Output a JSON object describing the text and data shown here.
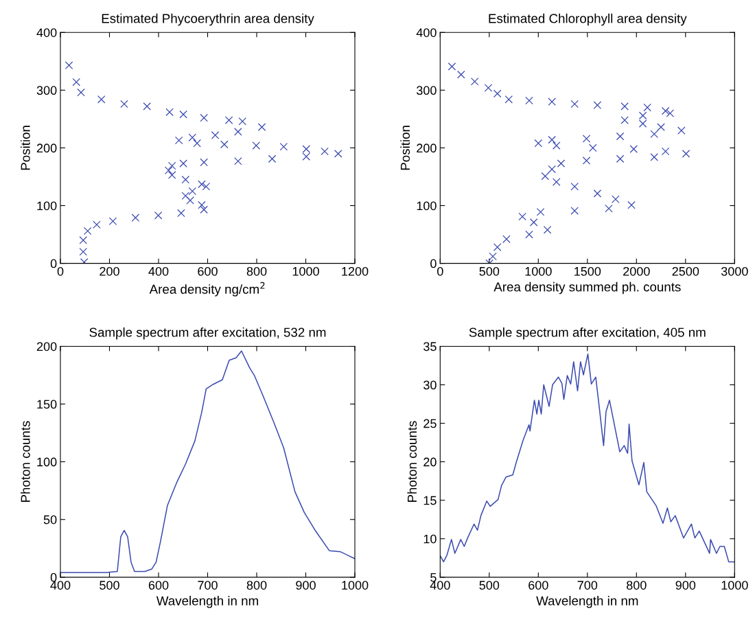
{
  "chart_data": [
    {
      "type": "scatter",
      "title": "Estimated Phycoerythrin area density",
      "xlabel": "Area density ng/cm$^{2}$",
      "ylabel": "Position",
      "color": "#3a4ab0",
      "marker": "cross",
      "x": [
        35,
        65,
        84,
        167,
        260,
        353,
        445,
        501,
        585,
        687,
        742,
        821,
        724,
        631,
        538,
        483,
        557,
        668,
        798,
        910,
        1002,
        1077,
        1132,
        1002,
        863,
        724,
        585,
        501,
        455,
        441,
        455,
        510,
        576,
        594,
        538,
        510,
        529,
        576,
        585,
        492,
        399,
        306,
        214,
        148,
        111,
        93,
        93,
        97
      ],
      "values": [
        343,
        314,
        296,
        284,
        276,
        272,
        262,
        258,
        252,
        248,
        246,
        236,
        228,
        222,
        218,
        213,
        208,
        206,
        204,
        202,
        198,
        194,
        190,
        185,
        181,
        177,
        175,
        173,
        169,
        161,
        153,
        145,
        137,
        133,
        125,
        117,
        109,
        101,
        93,
        87,
        83,
        79,
        73,
        67,
        56,
        40,
        20,
        2
      ],
      "xlim": [
        0,
        1200
      ],
      "ylim": [
        0,
        400
      ],
      "xticks": [
        0,
        200,
        400,
        600,
        800,
        1000,
        1200
      ],
      "yticks": [
        0,
        100,
        200,
        300,
        400
      ]
    },
    {
      "type": "scatter",
      "title": "Estimated Chlorophyll area density",
      "xlabel": "Area density summed ph. counts",
      "ylabel": "Position",
      "color": "#3a4ab0",
      "marker": "cross",
      "x": [
        120,
        213,
        352,
        491,
        583,
        699,
        907,
        1139,
        1370,
        1602,
        1880,
        2111,
        2296,
        2343,
        2065,
        1880,
        2065,
        2250,
        2458,
        2181,
        1834,
        1491,
        1139,
        1000,
        1185,
        1556,
        1972,
        2296,
        2505,
        2181,
        1834,
        1491,
        1232,
        1139,
        1070,
        1185,
        1370,
        1602,
        1787,
        1949,
        1718,
        1370,
        1023,
        838,
        954,
        1093,
        907,
        676,
        583,
        537,
        502
      ],
      "values": [
        341,
        327,
        315,
        304,
        294,
        284,
        282,
        280,
        276,
        274,
        272,
        270,
        264,
        260,
        256,
        248,
        242,
        236,
        230,
        224,
        220,
        216,
        214,
        208,
        204,
        200,
        198,
        194,
        190,
        184,
        181,
        178,
        173,
        163,
        151,
        141,
        133,
        121,
        111,
        101,
        95,
        91,
        89,
        81,
        71,
        58,
        50,
        42,
        28,
        12,
        0
      ],
      "xlim": [
        0,
        3000
      ],
      "ylim": [
        0,
        400
      ],
      "xticks": [
        0,
        500,
        1000,
        1500,
        2000,
        2500,
        3000
      ],
      "yticks": [
        0,
        100,
        200,
        300,
        400
      ]
    },
    {
      "type": "line",
      "title": "Sample spectrum after excitation, 532 nm",
      "xlabel": "Wavelength in nm",
      "ylabel": "Photon counts",
      "color": "#3a4ab0",
      "line_style": "solid",
      "x": [
        400,
        437,
        493,
        516,
        523,
        530,
        537,
        544,
        551,
        572,
        586,
        595,
        604,
        618,
        637,
        655,
        674,
        688,
        697,
        711,
        730,
        744,
        758,
        769,
        786,
        795,
        813,
        836,
        855,
        878,
        897,
        920,
        948,
        971,
        1000
      ],
      "values": [
        4,
        4,
        4,
        5,
        35,
        40.5,
        35,
        13,
        5,
        5,
        7,
        13,
        31,
        62,
        82,
        98,
        118,
        143,
        163,
        167,
        171,
        188,
        190,
        196,
        181,
        175,
        157,
        133,
        112,
        74,
        56,
        40,
        23,
        22,
        16
      ],
      "xlim": [
        400,
        1000
      ],
      "ylim": [
        0,
        200
      ],
      "xticks": [
        400,
        500,
        600,
        700,
        800,
        900,
        1000
      ],
      "yticks": [
        0,
        50,
        100,
        150,
        200
      ]
    },
    {
      "type": "line",
      "title": "Sample spectrum after excitation, 405 nm",
      "xlabel": "Wavelength in nm",
      "ylabel": "Photon counts",
      "color": "#3a4ab0",
      "line_style": "solid",
      "x": [
        400,
        407,
        414,
        423,
        430,
        442,
        449,
        456,
        469,
        476,
        483,
        495,
        502,
        518,
        525,
        534,
        548,
        555,
        569,
        581,
        583,
        592,
        597,
        601,
        606,
        611,
        622,
        629,
        641,
        648,
        652,
        659,
        666,
        672,
        680,
        686,
        692,
        701,
        708,
        717,
        724,
        733,
        738,
        745,
        766,
        775,
        782,
        785,
        791,
        805,
        815,
        821,
        840,
        854,
        863,
        870,
        879,
        896,
        912,
        919,
        928,
        949,
        951,
        963,
        970,
        979,
        988,
        1000
      ],
      "values": [
        7.8,
        7,
        7.9,
        9.9,
        8.1,
        9.9,
        9,
        10.1,
        11.9,
        11.1,
        13,
        14.9,
        14.2,
        15.1,
        16.9,
        18,
        18.3,
        19.9,
        22.8,
        24.8,
        24,
        28,
        26.2,
        28,
        26.2,
        30,
        27.2,
        30,
        31,
        30.2,
        28.1,
        31.2,
        30.1,
        33,
        29.2,
        33,
        31.3,
        34,
        30.1,
        31,
        27.2,
        22.1,
        26.5,
        28,
        21.3,
        22.1,
        21.1,
        24.9,
        20.1,
        17,
        19.9,
        16.1,
        14.3,
        12,
        14,
        12.2,
        13,
        10.1,
        11.9,
        10.1,
        11,
        8.1,
        9.9,
        8.1,
        9,
        9,
        7,
        7
      ],
      "xlim": [
        400,
        1000
      ],
      "ylim": [
        5,
        35
      ],
      "xticks": [
        400,
        500,
        600,
        700,
        800,
        900,
        1000
      ],
      "yticks": [
        5,
        10,
        15,
        20,
        25,
        30,
        35
      ]
    }
  ]
}
